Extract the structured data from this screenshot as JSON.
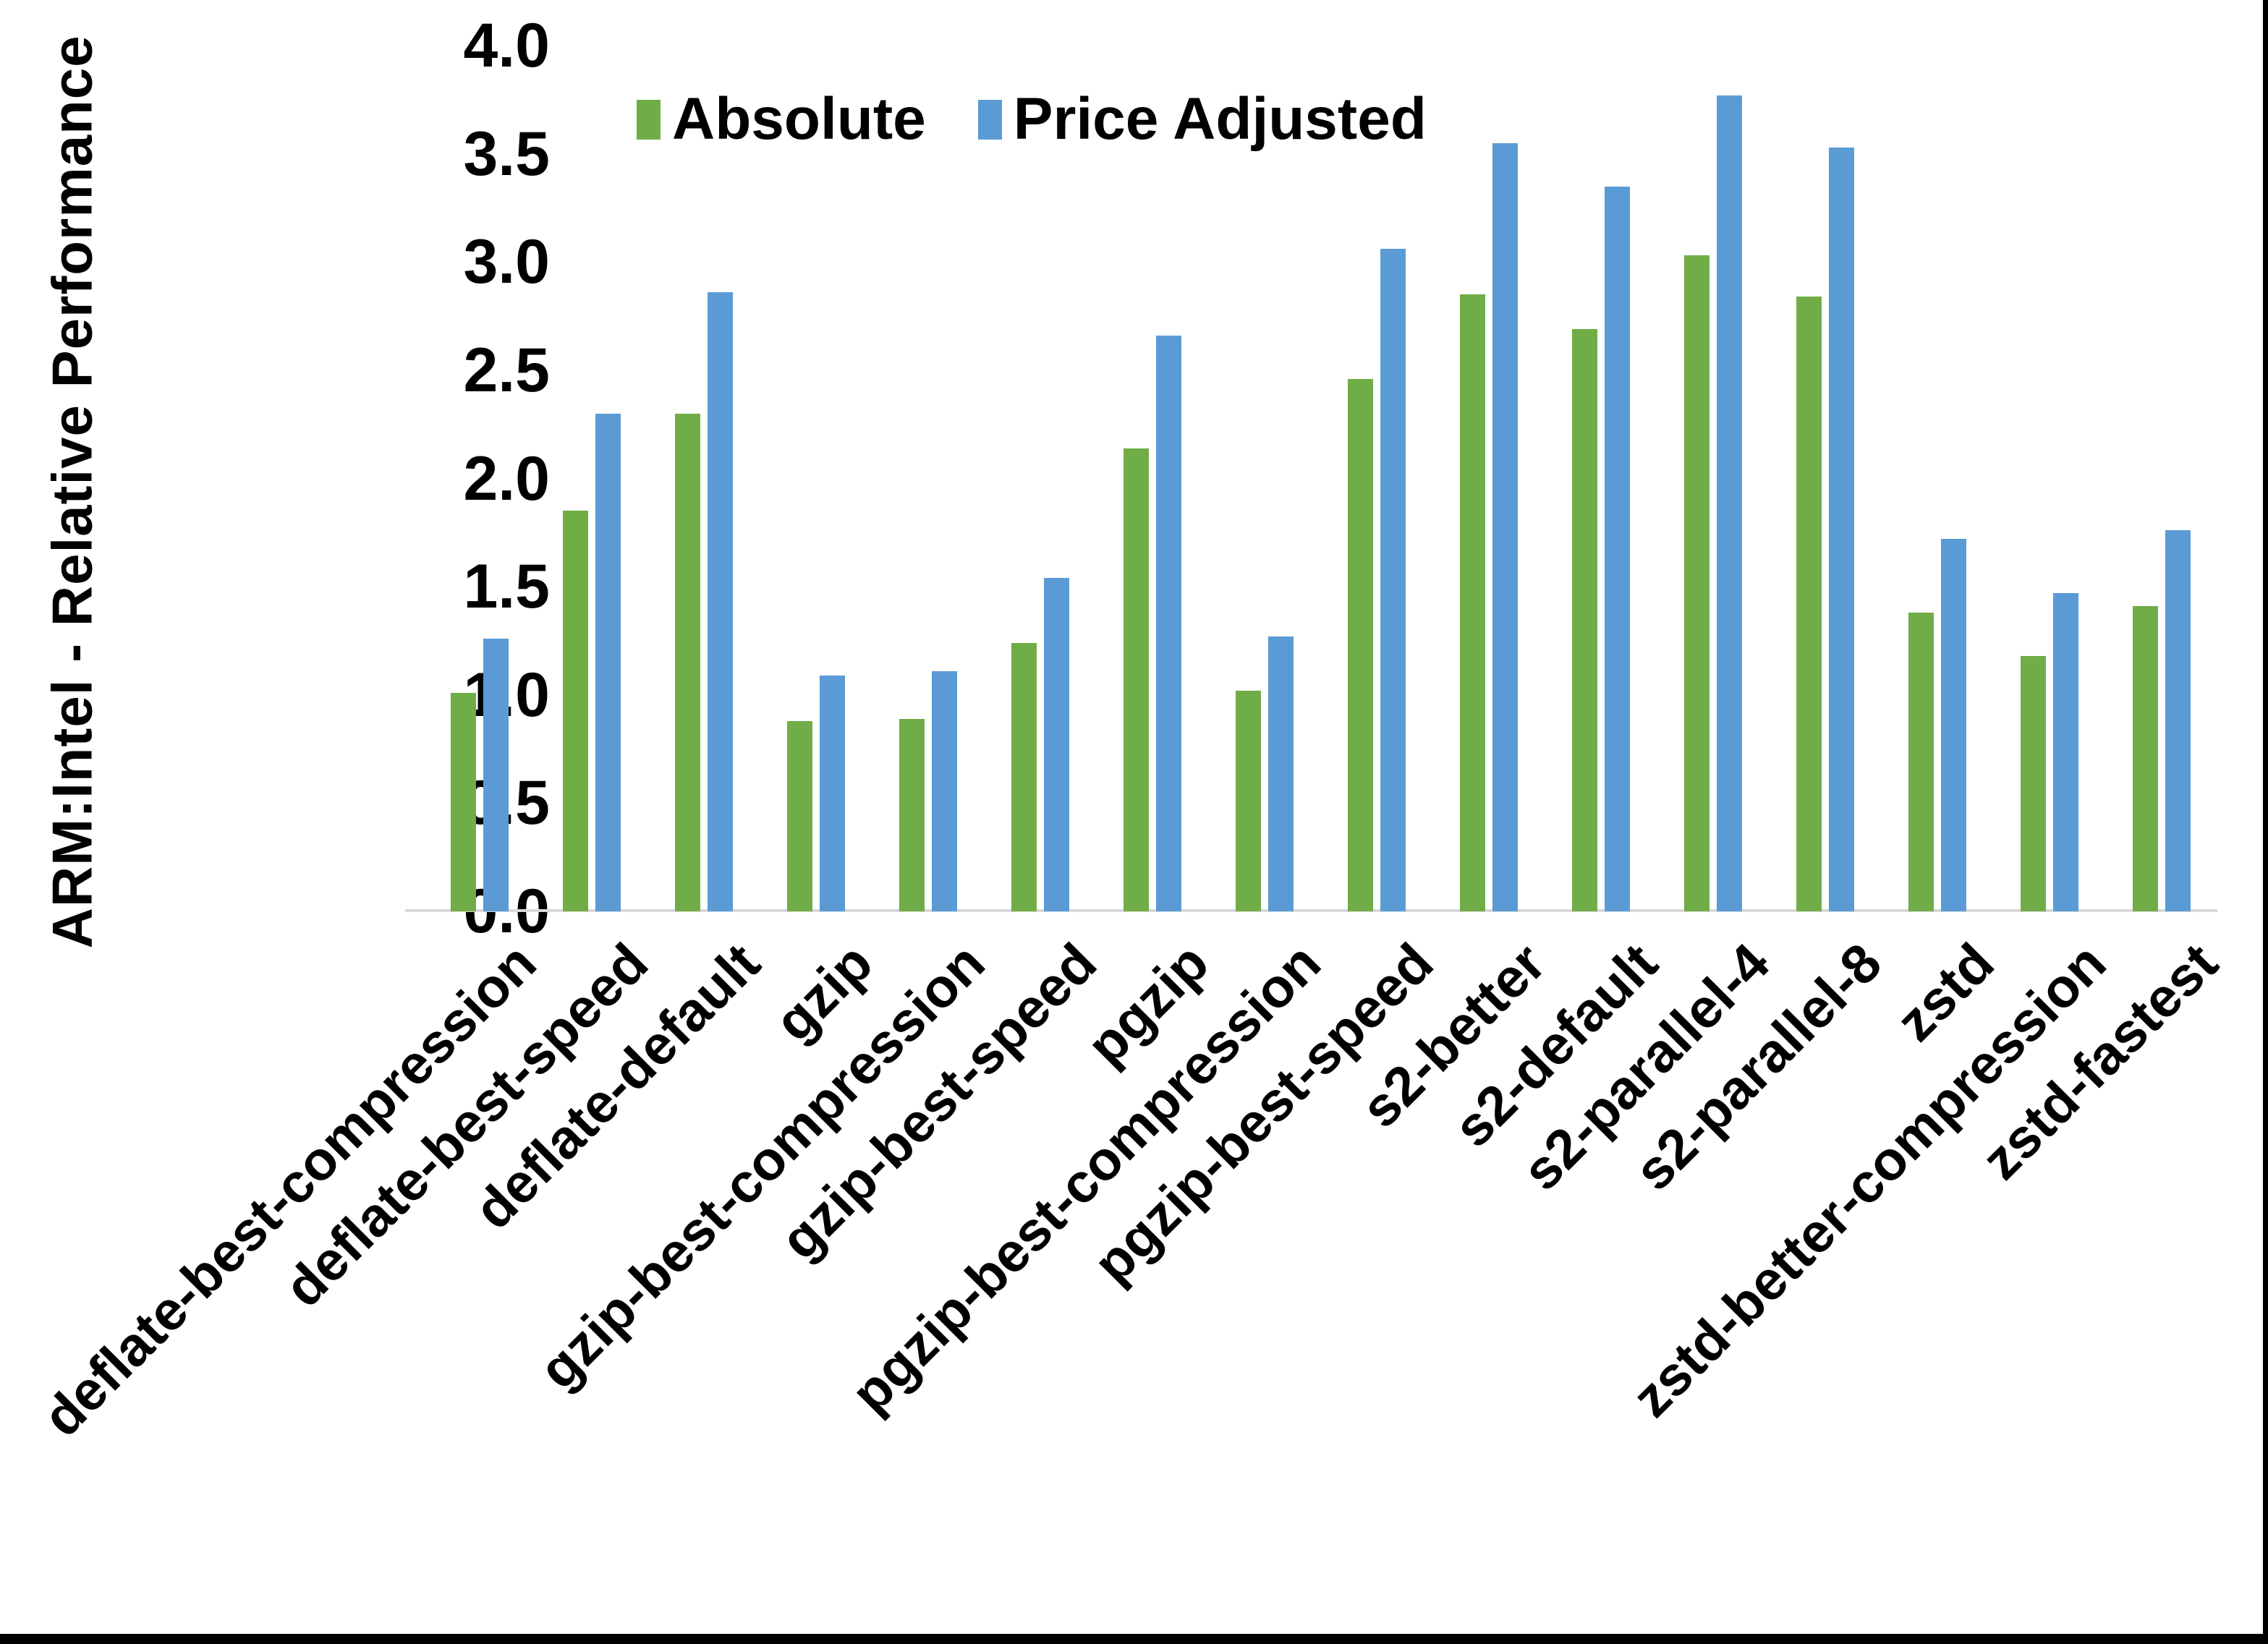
{
  "figure": {
    "background_color": "#ffffff",
    "border_bottom_color": "#000000",
    "border_right_color": "#000000"
  },
  "legend": {
    "items": [
      {
        "label": "Absolute",
        "color": "#70AD47"
      },
      {
        "label": "Price Adjusted",
        "color": "#5B9BD5"
      }
    ],
    "position": "top-center"
  },
  "chart_data": {
    "type": "bar",
    "title": "",
    "xlabel": "",
    "ylabel": "ARM:Intel - Relative Performance",
    "ylim": [
      0.0,
      4.0
    ],
    "ytick_step": 0.5,
    "yticks": [
      "0.0",
      "0.5",
      "1.0",
      "1.5",
      "2.0",
      "2.5",
      "3.0",
      "3.5",
      "4.0"
    ],
    "grid": false,
    "legend_position": "top",
    "axis_line_color": "#d9d9d9",
    "x_label_rotation_deg": 45,
    "categories": [
      "deflate-best-compression",
      "deflate-best-speed",
      "deflate-default",
      "gzip",
      "gzip-best-compression",
      "gzip-best-speed",
      "pgzip",
      "pgzip-best-compression",
      "pgzip-best-speed",
      "s2-better",
      "s2-default",
      "s2-parallel-4",
      "s2-parallel-8",
      "zstd",
      "zstd-better-compression",
      "zstd-fastest"
    ],
    "series": [
      {
        "name": "Absolute",
        "color": "#70AD47",
        "values": [
          1.01,
          1.85,
          2.3,
          0.88,
          0.89,
          1.24,
          2.14,
          1.02,
          2.46,
          2.85,
          2.69,
          3.03,
          2.84,
          1.38,
          1.18,
          1.41
        ]
      },
      {
        "name": "Price Adjusted",
        "color": "#5B9BD5",
        "values": [
          1.26,
          2.3,
          2.86,
          1.09,
          1.11,
          1.54,
          2.66,
          1.27,
          3.06,
          3.55,
          3.35,
          3.77,
          3.53,
          1.72,
          1.47,
          1.76
        ]
      }
    ]
  }
}
